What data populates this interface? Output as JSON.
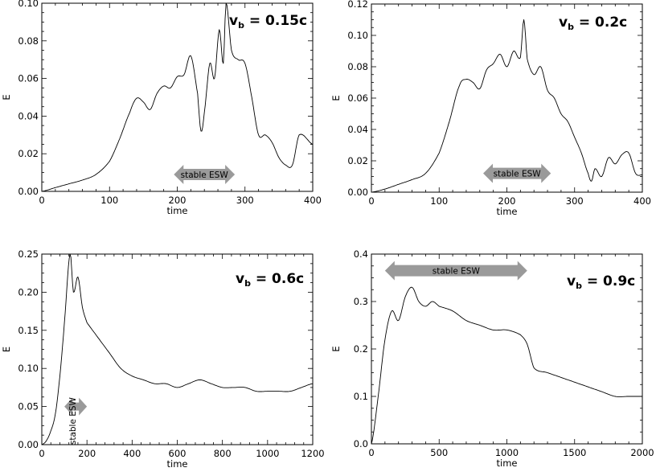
{
  "chart_data": [
    {
      "type": "line",
      "label": {
        "prefix": "v",
        "sub": "b",
        "suffix": " = 0.15c"
      },
      "xlabel": "time",
      "ylabel": "E",
      "xlim": [
        0,
        400
      ],
      "ylim": [
        0,
        0.1
      ],
      "xticks": [
        0,
        100,
        200,
        300,
        400
      ],
      "yticks": [
        0.0,
        0.02,
        0.04,
        0.06,
        0.08,
        0.1
      ],
      "yfmt": 2,
      "annotation": {
        "text": "stable ESW",
        "x_range": [
          195,
          285
        ],
        "y": 0.009,
        "orientation": "horizontal"
      },
      "series": [
        {
          "points": [
            [
              0,
              0
            ],
            [
              20,
              0.002
            ],
            [
              40,
              0.004
            ],
            [
              60,
              0.006
            ],
            [
              80,
              0.009
            ],
            [
              100,
              0.016
            ],
            [
              115,
              0.028
            ],
            [
              130,
              0.042
            ],
            [
              140,
              0.0495
            ],
            [
              150,
              0.0475
            ],
            [
              160,
              0.0435
            ],
            [
              170,
              0.052
            ],
            [
              180,
              0.056
            ],
            [
              190,
              0.055
            ],
            [
              200,
              0.061
            ],
            [
              210,
              0.062
            ],
            [
              220,
              0.072
            ],
            [
              230,
              0.052
            ],
            [
              235,
              0.032
            ],
            [
              240,
              0.042
            ],
            [
              248,
              0.068
            ],
            [
              255,
              0.06
            ],
            [
              262,
              0.086
            ],
            [
              268,
              0.068
            ],
            [
              272,
              0.1
            ],
            [
              280,
              0.075
            ],
            [
              290,
              0.07
            ],
            [
              300,
              0.068
            ],
            [
              310,
              0.05
            ],
            [
              320,
              0.03
            ],
            [
              330,
              0.03
            ],
            [
              340,
              0.026
            ],
            [
              350,
              0.018
            ],
            [
              360,
              0.014
            ],
            [
              370,
              0.014
            ],
            [
              380,
              0.03
            ],
            [
              400,
              0.025
            ]
          ]
        }
      ]
    },
    {
      "type": "line",
      "label": {
        "prefix": "v",
        "sub": "b",
        "suffix": " = 0.2c"
      },
      "xlabel": "time",
      "ylabel": "E",
      "xlim": [
        0,
        400
      ],
      "ylim": [
        0,
        0.12
      ],
      "xticks": [
        0,
        100,
        200,
        300,
        400
      ],
      "yticks": [
        0.0,
        0.02,
        0.04,
        0.06,
        0.08,
        0.1,
        0.12
      ],
      "yfmt": 2,
      "annotation": {
        "text": "stable ESW",
        "x_range": [
          165,
          265
        ],
        "y": 0.012,
        "orientation": "horizontal"
      },
      "series": [
        {
          "points": [
            [
              0,
              0
            ],
            [
              20,
              0.002
            ],
            [
              40,
              0.005
            ],
            [
              60,
              0.008
            ],
            [
              80,
              0.012
            ],
            [
              100,
              0.025
            ],
            [
              115,
              0.045
            ],
            [
              130,
              0.068
            ],
            [
              140,
              0.072
            ],
            [
              150,
              0.07
            ],
            [
              160,
              0.066
            ],
            [
              170,
              0.078
            ],
            [
              180,
              0.082
            ],
            [
              190,
              0.088
            ],
            [
              200,
              0.08
            ],
            [
              210,
              0.09
            ],
            [
              220,
              0.086
            ],
            [
              225,
              0.11
            ],
            [
              230,
              0.085
            ],
            [
              240,
              0.075
            ],
            [
              250,
              0.08
            ],
            [
              260,
              0.065
            ],
            [
              270,
              0.06
            ],
            [
              280,
              0.05
            ],
            [
              290,
              0.045
            ],
            [
              300,
              0.035
            ],
            [
              310,
              0.025
            ],
            [
              320,
              0.012
            ],
            [
              325,
              0.007
            ],
            [
              330,
              0.015
            ],
            [
              340,
              0.01
            ],
            [
              350,
              0.022
            ],
            [
              360,
              0.018
            ],
            [
              370,
              0.024
            ],
            [
              380,
              0.025
            ],
            [
              390,
              0.012
            ],
            [
              400,
              0.011
            ]
          ]
        }
      ]
    },
    {
      "type": "line",
      "label": {
        "prefix": "v",
        "sub": "b",
        "suffix": " = 0.6c"
      },
      "xlabel": "time",
      "ylabel": "E",
      "xlim": [
        0,
        1200
      ],
      "ylim": [
        0,
        0.25
      ],
      "xticks": [
        0,
        200,
        400,
        600,
        800,
        1000,
        1200
      ],
      "yticks": [
        0.0,
        0.05,
        0.1,
        0.15,
        0.2,
        0.25
      ],
      "yfmt": 2,
      "annotation": {
        "text": "stable ESW",
        "x_range": [
          100,
          200
        ],
        "y": 0.05,
        "orientation": "vertical"
      },
      "series": [
        {
          "points": [
            [
              0,
              0
            ],
            [
              20,
              0.005
            ],
            [
              40,
              0.018
            ],
            [
              60,
              0.04
            ],
            [
              80,
              0.09
            ],
            [
              100,
              0.16
            ],
            [
              125,
              0.25
            ],
            [
              140,
              0.2
            ],
            [
              160,
              0.22
            ],
            [
              180,
              0.18
            ],
            [
              200,
              0.16
            ],
            [
              250,
              0.14
            ],
            [
              300,
              0.12
            ],
            [
              350,
              0.1
            ],
            [
              400,
              0.09
            ],
            [
              450,
              0.085
            ],
            [
              500,
              0.08
            ],
            [
              550,
              0.08
            ],
            [
              600,
              0.075
            ],
            [
              650,
              0.08
            ],
            [
              700,
              0.085
            ],
            [
              750,
              0.08
            ],
            [
              800,
              0.075
            ],
            [
              850,
              0.075
            ],
            [
              900,
              0.075
            ],
            [
              950,
              0.07
            ],
            [
              1000,
              0.07
            ],
            [
              1050,
              0.07
            ],
            [
              1100,
              0.07
            ],
            [
              1150,
              0.075
            ],
            [
              1200,
              0.08
            ]
          ]
        }
      ]
    },
    {
      "type": "line",
      "label": {
        "prefix": "v",
        "sub": "b",
        "suffix": " = 0.9c"
      },
      "xlabel": "time",
      "ylabel": "E",
      "xlim": [
        0,
        2000
      ],
      "ylim": [
        0,
        0.4
      ],
      "xticks": [
        0,
        500,
        1000,
        1500,
        2000
      ],
      "yticks": [
        0.0,
        0.1,
        0.2,
        0.3,
        0.4
      ],
      "yfmt": 1,
      "annotation": {
        "text": "stable ESW",
        "x_range": [
          100,
          1150
        ],
        "y": 0.365,
        "orientation": "horizontal"
      },
      "series": [
        {
          "points": [
            [
              0,
              0
            ],
            [
              50,
              0.1
            ],
            [
              100,
              0.22
            ],
            [
              150,
              0.28
            ],
            [
              200,
              0.26
            ],
            [
              250,
              0.31
            ],
            [
              300,
              0.33
            ],
            [
              350,
              0.3
            ],
            [
              400,
              0.29
            ],
            [
              450,
              0.3
            ],
            [
              500,
              0.29
            ],
            [
              600,
              0.28
            ],
            [
              700,
              0.26
            ],
            [
              800,
              0.25
            ],
            [
              900,
              0.24
            ],
            [
              1000,
              0.24
            ],
            [
              1100,
              0.23
            ],
            [
              1150,
              0.21
            ],
            [
              1200,
              0.16
            ],
            [
              1300,
              0.15
            ],
            [
              1400,
              0.14
            ],
            [
              1500,
              0.13
            ],
            [
              1600,
              0.12
            ],
            [
              1700,
              0.11
            ],
            [
              1800,
              0.1
            ],
            [
              1900,
              0.1
            ],
            [
              2000,
              0.1
            ]
          ]
        }
      ]
    }
  ]
}
